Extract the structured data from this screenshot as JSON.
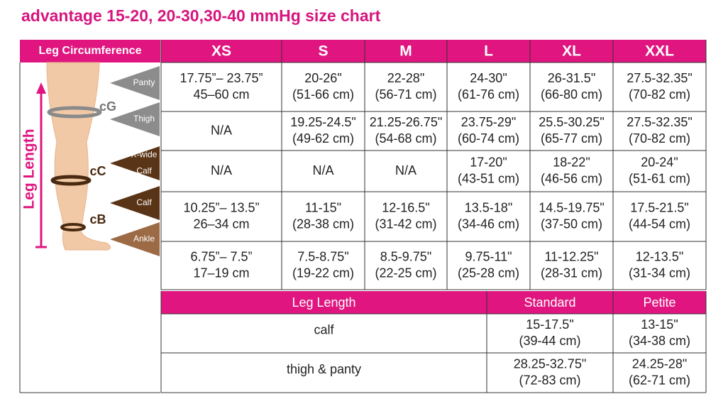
{
  "title": "advantage 15-20, 20-30,30-40 mmHg size chart",
  "circumference_table": {
    "header": "Leg Circumference",
    "sizes": [
      "XS",
      "S",
      "M",
      "L",
      "XL",
      "XXL"
    ],
    "rows": [
      [
        [
          "17.75”– 23.75”",
          "45–60 cm"
        ],
        [
          "20-26\"",
          "(51-66 cm)"
        ],
        [
          "22-28\"",
          "(56-71 cm)"
        ],
        [
          "24-30\"",
          "(61-76 cm)"
        ],
        [
          "26-31.5\"",
          "(66-80 cm)"
        ],
        [
          "27.5-32.35\"",
          "(70-82 cm)"
        ]
      ],
      [
        [
          "N/A"
        ],
        [
          "19.25-24.5\"",
          "(49-62 cm)"
        ],
        [
          "21.25-26.75\"",
          "(54-68 cm)"
        ],
        [
          "23.75-29\"",
          "(60-74 cm)"
        ],
        [
          "25.5-30.25\"",
          "(65-77 cm)"
        ],
        [
          "27.5-32.35\"",
          "(70-82 cm)"
        ]
      ],
      [
        [
          "N/A"
        ],
        [
          "N/A"
        ],
        [
          "N/A"
        ],
        [
          "17-20\"",
          "(43-51 cm)"
        ],
        [
          "18-22\"",
          "(46-56 cm)"
        ],
        [
          "20-24\"",
          "(51-61 cm)"
        ]
      ],
      [
        [
          "10.25”– 13.5”",
          "26–34 cm"
        ],
        [
          "11-15\"",
          "(28-38 cm)"
        ],
        [
          "12-16.5\"",
          "(31-42 cm)"
        ],
        [
          "13.5-18\"",
          "(34-46 cm)"
        ],
        [
          "14.5-19.75\"",
          "(37-50 cm)"
        ],
        [
          "17.5-21.5\"",
          "(44-54 cm)"
        ]
      ],
      [
        [
          "6.75”– 7.5”",
          "17–19 cm"
        ],
        [
          "7.5-8.75\"",
          "(19-22 cm)"
        ],
        [
          "8.5-9.75\"",
          "(22-25 cm)"
        ],
        [
          "9.75-11\"",
          "(25-28 cm)"
        ],
        [
          "11-12.25\"",
          "(28-31 cm)"
        ],
        [
          "12-13.5\"",
          "(31-34 cm)"
        ]
      ]
    ]
  },
  "diagram": {
    "measure_labels": [
      [
        "Panty"
      ],
      [
        "Thigh"
      ],
      [
        "X-wide",
        "Calf"
      ],
      [
        "Calf"
      ],
      [
        "Ankle"
      ]
    ],
    "markers": [
      "cG",
      "cC",
      "cB"
    ],
    "axis_label": "Leg Length"
  },
  "length_table": {
    "headers": [
      "Leg Length",
      "Standard",
      "Petite"
    ],
    "rows": [
      {
        "label": "calf",
        "standard": [
          "15-17.5\"",
          "(39-44 cm)"
        ],
        "petite": [
          "13-15\"",
          "(34-38 cm)"
        ]
      },
      {
        "label": "thigh & panty",
        "standard": [
          "28.25-32.75\"",
          "(72-83 cm)"
        ],
        "petite": [
          "24.25-28\"",
          "(62-71 cm)"
        ]
      }
    ]
  }
}
